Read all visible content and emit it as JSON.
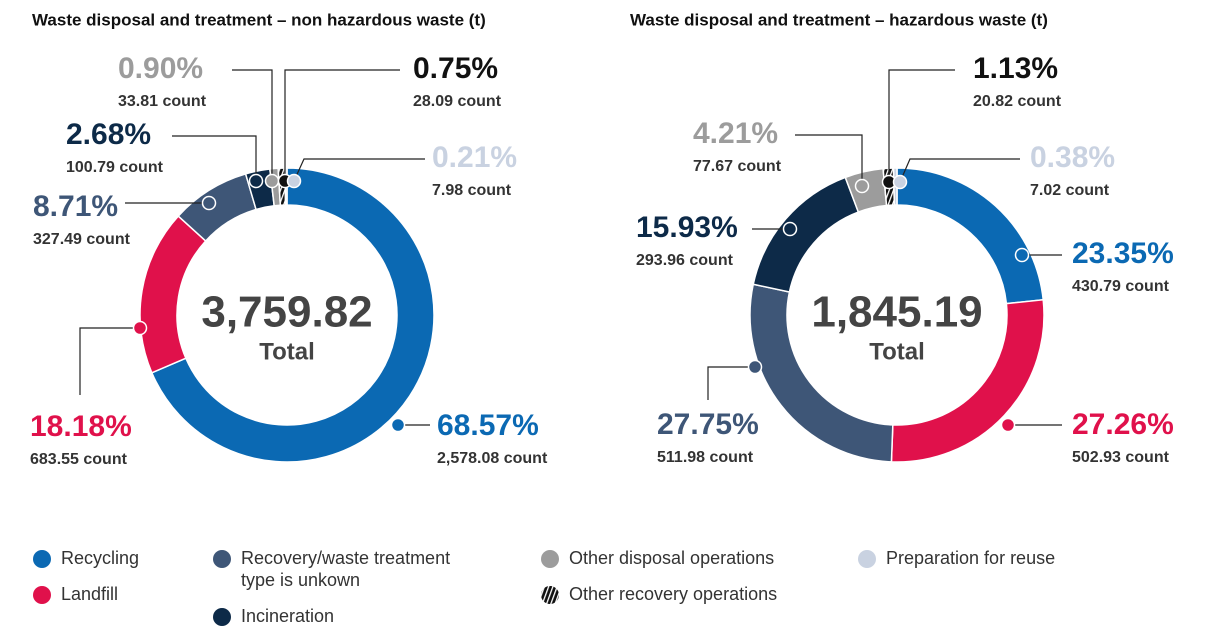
{
  "chart_data": [
    {
      "type": "donut",
      "title": "Waste disposal and treatment – non hazardous waste (t)",
      "total_label": "3,759.82",
      "total_caption": "Total",
      "categories": [
        "Recycling",
        "Landfill",
        "Recovery/waste treatment type is unkown",
        "Incineration",
        "Other disposal operations",
        "Other recovery operations",
        "Preparation for reuse"
      ],
      "values": [
        68.57,
        18.18,
        8.71,
        2.68,
        0.9,
        0.75,
        0.21
      ],
      "value_labels": [
        "68.57%",
        "18.18%",
        "8.71%",
        "2.68%",
        "0.90%",
        "0.75%",
        "0.21%"
      ],
      "count_labels": [
        "2,578.08 count",
        "683.55 count",
        "327.49 count",
        "100.79 count",
        "33.81 count",
        "28.09 count",
        "7.98 count"
      ],
      "colors": [
        "#0b69b3",
        "#e0114b",
        "#3e5677",
        "#0d2a48",
        "#9c9c9c",
        "#111111",
        "#c9d2e1"
      ],
      "hatch": [
        false,
        false,
        false,
        false,
        false,
        true,
        false
      ]
    },
    {
      "type": "donut",
      "title": "Waste disposal and treatment – hazardous waste (t)",
      "total_label": "1,845.19",
      "total_caption": "Total",
      "categories": [
        "Recycling",
        "Landfill",
        "Recovery/waste treatment type is unkown",
        "Incineration",
        "Other disposal operations",
        "Other recovery operations",
        "Preparation for reuse"
      ],
      "values": [
        23.35,
        27.26,
        27.75,
        15.93,
        4.21,
        1.13,
        0.38
      ],
      "value_labels": [
        "23.35%",
        "27.26%",
        "27.75%",
        "15.93%",
        "4.21%",
        "1.13%",
        "0.38%"
      ],
      "count_labels": [
        "430.79 count",
        "502.93 count",
        "511.98 count",
        "293.96 count",
        "77.67 count",
        "20.82 count",
        "7.02 count"
      ],
      "colors": [
        "#0b69b3",
        "#e0114b",
        "#3e5677",
        "#0d2a48",
        "#9c9c9c",
        "#111111",
        "#c9d2e1"
      ],
      "hatch": [
        false,
        false,
        false,
        false,
        false,
        true,
        false
      ]
    }
  ]
}
